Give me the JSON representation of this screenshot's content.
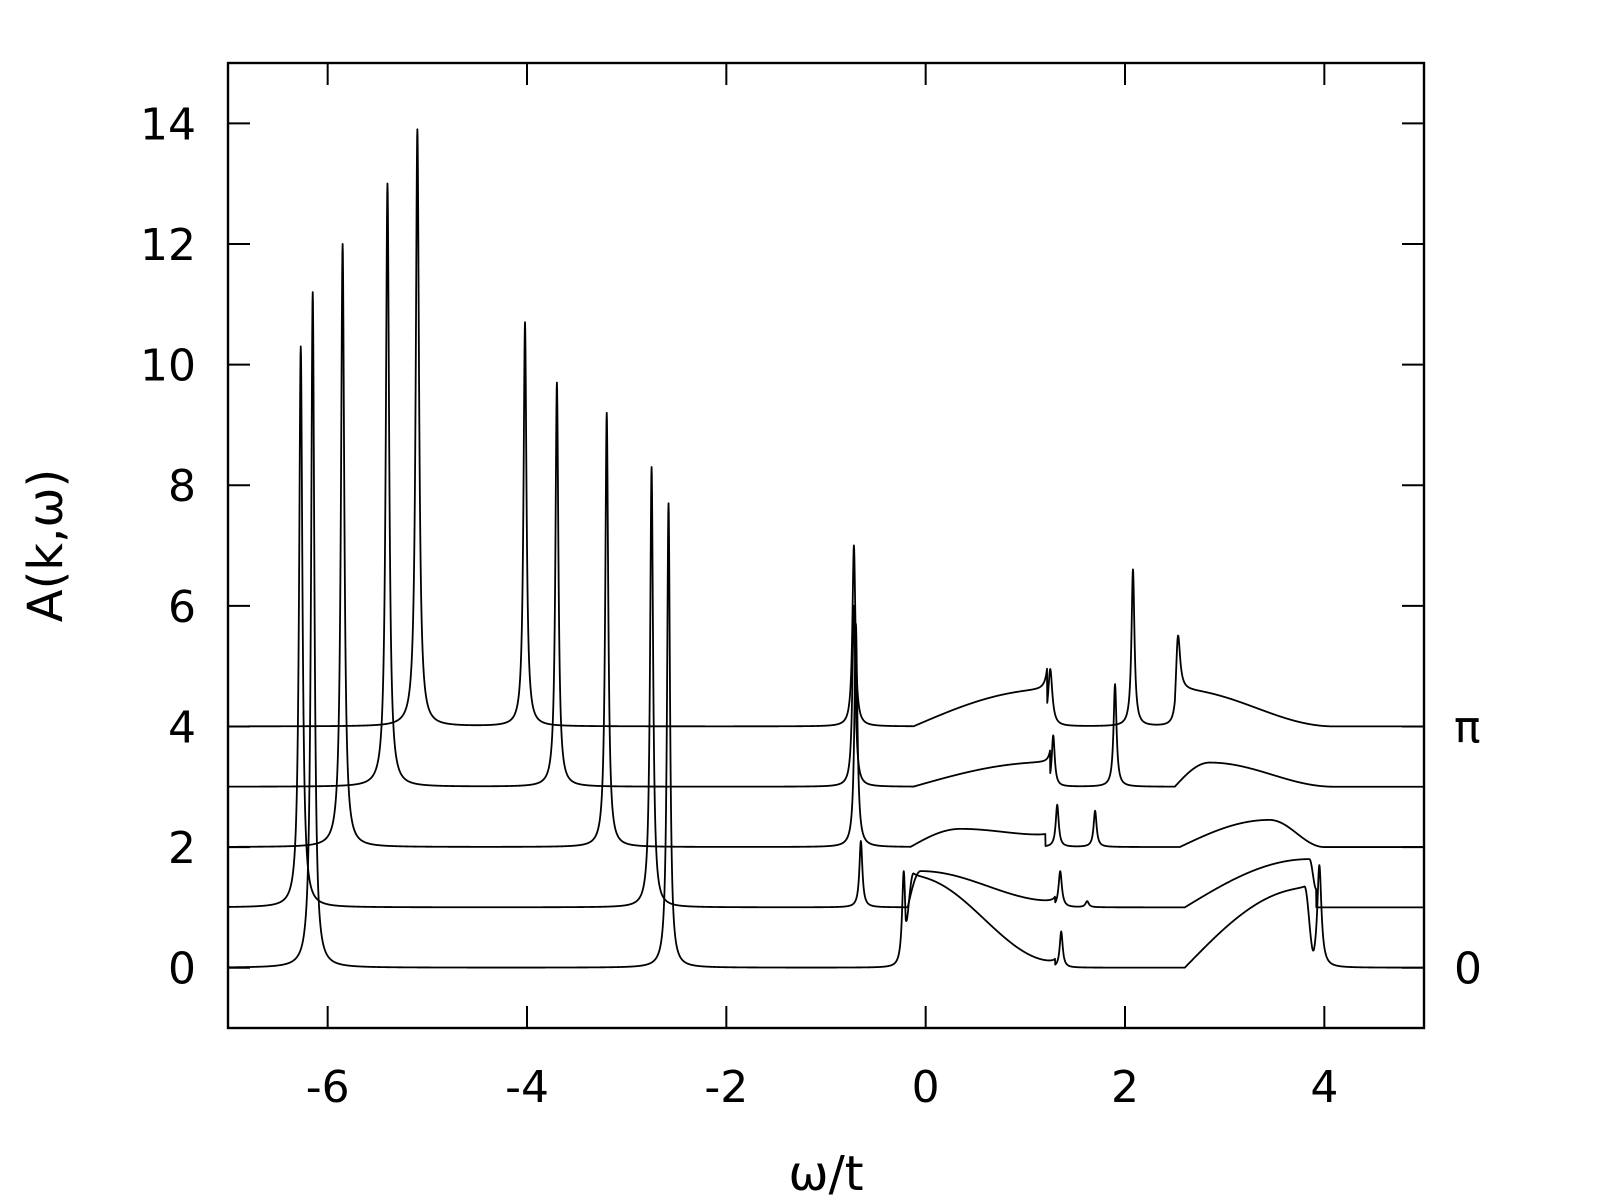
{
  "chart_data": {
    "type": "line",
    "title": "",
    "xlabel": "ω/t",
    "ylabel": "A(k,ω)",
    "xlim": [
      -7,
      5
    ],
    "ylim": [
      -1,
      15
    ],
    "x_ticks": [
      -6,
      -4,
      -2,
      0,
      2,
      4
    ],
    "x_tick_labels": [
      "-6",
      "-4",
      "-2",
      "0",
      "2",
      "4"
    ],
    "y_ticks": [
      0,
      2,
      4,
      6,
      8,
      10,
      12,
      14
    ],
    "y_tick_labels": [
      "0",
      "2",
      "4",
      "6",
      "8",
      "10",
      "12",
      "14"
    ],
    "grid": false,
    "legend": "none",
    "annotations": [
      {
        "text": "π",
        "y": 4
      },
      {
        "text": "0",
        "y": 0
      }
    ],
    "series": [
      {
        "offset": 0,
        "peaks": [
          {
            "x": -6.15,
            "y": 11.2,
            "w": 0.02
          },
          {
            "x": -2.58,
            "y": 7.7,
            "w": 0.018
          },
          {
            "x": -0.22,
            "y": 1.6,
            "w": 0.02
          },
          {
            "x": 1.36,
            "y": 0.6,
            "w": 0.018
          },
          {
            "x": 3.95,
            "y": 1.7,
            "w": 0.025
          }
        ],
        "bands": [
          {
            "x0": -0.2,
            "x1": 1.3,
            "x_peak": -0.12,
            "y_peak": 1.5,
            "y_end": 0.1
          },
          {
            "x0": 2.6,
            "x1": 3.9,
            "x_peak": 3.8,
            "y_peak": 1.3,
            "y_end": 0.0
          }
        ]
      },
      {
        "offset": 1,
        "peaks": [
          {
            "x": -6.27,
            "y": 9.3,
            "w": 0.02
          },
          {
            "x": -2.75,
            "y": 7.3,
            "w": 0.018
          },
          {
            "x": -0.65,
            "y": 1.1,
            "w": 0.018
          },
          {
            "x": 1.35,
            "y": 0.6,
            "w": 0.02
          },
          {
            "x": 1.62,
            "y": 0.1,
            "w": 0.02
          }
        ],
        "bands": [
          {
            "x0": -0.18,
            "x1": 1.3,
            "x_peak": -0.05,
            "y_peak": 0.6,
            "y_end": 0.1
          },
          {
            "x0": 2.6,
            "x1": 3.92,
            "x_peak": 3.85,
            "y_peak": 0.8,
            "y_end": 0.3
          }
        ]
      },
      {
        "offset": 2,
        "peaks": [
          {
            "x": -5.85,
            "y": 10.0,
            "w": 0.02
          },
          {
            "x": -3.2,
            "y": 7.2,
            "w": 0.018
          },
          {
            "x": -0.7,
            "y": 3.7,
            "w": 0.018
          },
          {
            "x": 1.32,
            "y": 0.7,
            "w": 0.018
          },
          {
            "x": 1.7,
            "y": 0.6,
            "w": 0.018
          }
        ],
        "bands": [
          {
            "x0": -0.15,
            "x1": 1.2,
            "x_peak": 0.35,
            "y_peak": 0.3,
            "y_end": 0.2
          },
          {
            "x0": 2.55,
            "x1": 4.0,
            "x_peak": 3.45,
            "y_peak": 0.45,
            "y_end": 0.0
          }
        ]
      },
      {
        "offset": 3,
        "peaks": [
          {
            "x": -5.4,
            "y": 10.0,
            "w": 0.02
          },
          {
            "x": -3.7,
            "y": 6.7,
            "w": 0.018
          },
          {
            "x": -0.72,
            "y": 3.0,
            "w": 0.018
          },
          {
            "x": 1.28,
            "y": 0.85,
            "w": 0.018
          },
          {
            "x": 1.9,
            "y": 1.7,
            "w": 0.018
          }
        ],
        "bands": [
          {
            "x0": -0.12,
            "x1": 1.25,
            "x_peak": 1.2,
            "y_peak": 0.4,
            "y_end": 0.4
          },
          {
            "x0": 2.5,
            "x1": 4.1,
            "x_peak": 2.85,
            "y_peak": 0.4,
            "y_end": 0.0
          }
        ]
      },
      {
        "offset": 4,
        "peaks": [
          {
            "x": -5.1,
            "y": 9.9,
            "w": 0.02
          },
          {
            "x": -4.02,
            "y": 6.7,
            "w": 0.018
          },
          {
            "x": -0.72,
            "y": 3.0,
            "w": 0.018
          },
          {
            "x": 1.25,
            "y": 0.95,
            "w": 0.025
          },
          {
            "x": 2.08,
            "y": 2.6,
            "w": 0.018
          },
          {
            "x": 2.53,
            "y": 1.0,
            "w": 0.025
          }
        ],
        "bands": [
          {
            "x0": -0.12,
            "x1": 1.22,
            "x_peak": 1.2,
            "y_peak": 0.6,
            "y_end": 0.6
          },
          {
            "x0": 2.5,
            "x1": 4.1,
            "x_peak": 2.55,
            "y_peak": 0.6,
            "y_end": 0.0
          }
        ]
      }
    ]
  }
}
